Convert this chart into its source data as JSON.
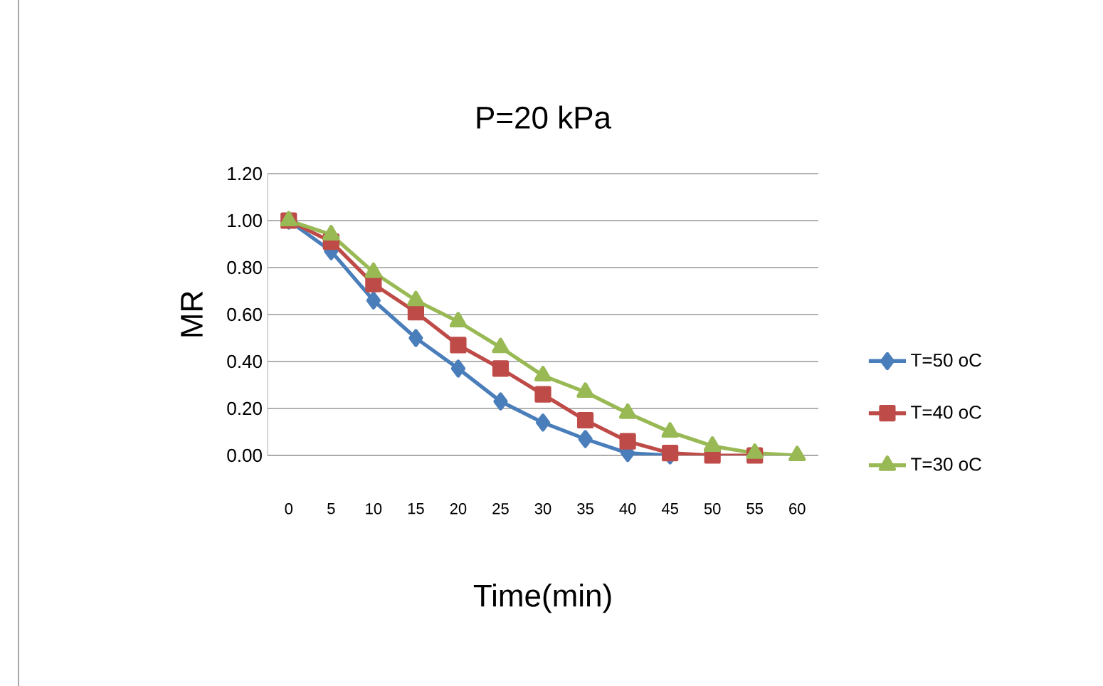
{
  "chart_data": {
    "type": "line",
    "title": "P=20 kPa",
    "xlabel": "Time(min)",
    "ylabel": "MR",
    "categories": [
      "0",
      "5",
      "10",
      "15",
      "20",
      "25",
      "30",
      "35",
      "40",
      "45",
      "50",
      "55",
      "60"
    ],
    "series": [
      {
        "name": "T=50 oC",
        "color": "#4a7ebb",
        "marker": "diamond",
        "values": [
          1.0,
          0.87,
          0.66,
          0.5,
          0.37,
          0.23,
          0.14,
          0.07,
          0.01,
          0.0,
          null,
          null,
          null
        ]
      },
      {
        "name": "T=40 oC",
        "color": "#be4b48",
        "marker": "square",
        "values": [
          1.0,
          0.91,
          0.73,
          0.61,
          0.47,
          0.37,
          0.26,
          0.15,
          0.06,
          0.01,
          0.0,
          0.0,
          null
        ]
      },
      {
        "name": "T=30 oC",
        "color": "#98b954",
        "marker": "triangle",
        "values": [
          1.0,
          0.94,
          0.78,
          0.66,
          0.57,
          0.46,
          0.34,
          0.27,
          0.18,
          0.1,
          0.04,
          0.01,
          0.0
        ]
      }
    ],
    "ylim": [
      0,
      1.2
    ],
    "yticks": [
      {
        "value": 0,
        "label": "0.00"
      },
      {
        "value": 0.2,
        "label": "0.20"
      },
      {
        "value": 0.4,
        "label": "0.40"
      },
      {
        "value": 0.6,
        "label": "0.60"
      },
      {
        "value": 0.8,
        "label": "0.80"
      },
      {
        "value": 1.0,
        "label": "1.00"
      },
      {
        "value": 1.2,
        "label": "1.20"
      }
    ],
    "grid": "y",
    "legend": "right",
    "line_style": "solid"
  }
}
